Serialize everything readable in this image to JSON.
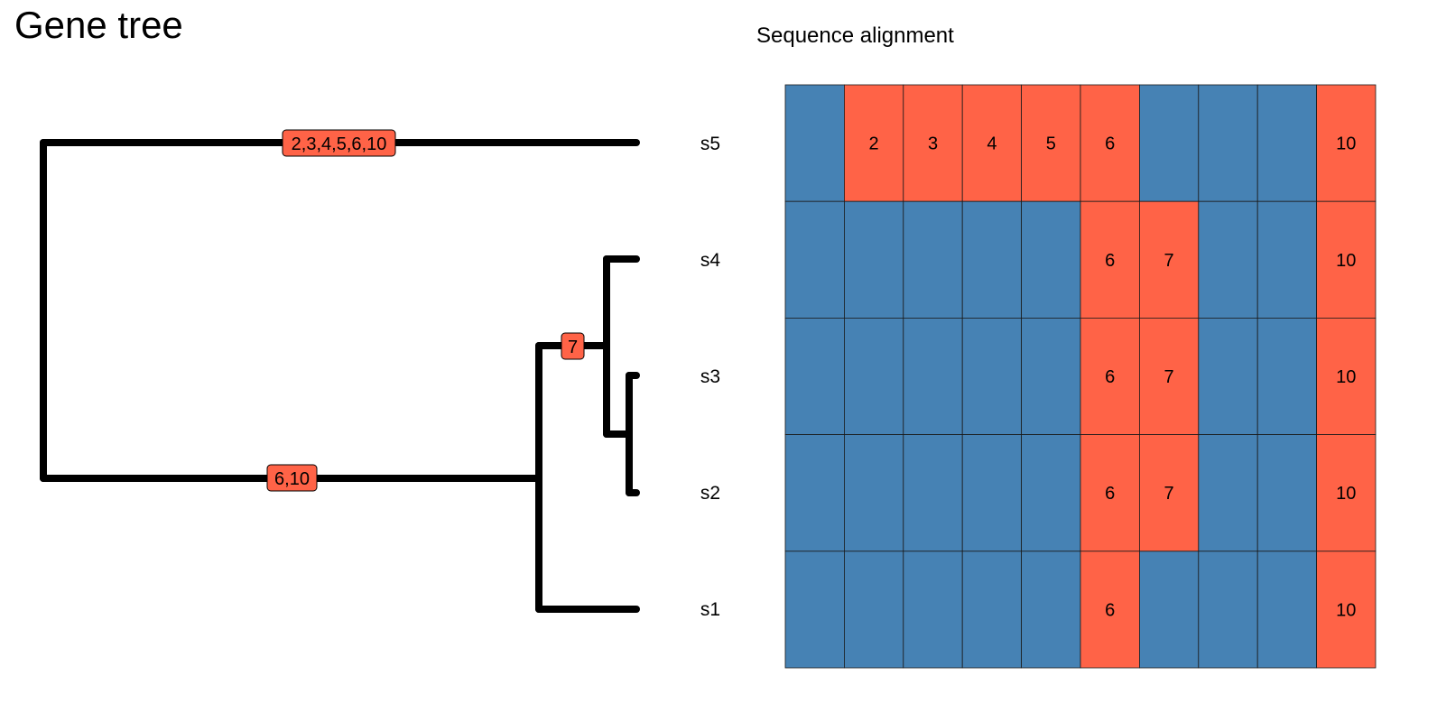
{
  "titles": {
    "tree": "Gene tree",
    "alignment": "Sequence alignment"
  },
  "colors": {
    "mutated": "#FF6347",
    "reference": "#4682B4",
    "branch": "#000000",
    "grid": "#1a1a1a"
  },
  "tree": {
    "tips": [
      "s5",
      "s4",
      "s3",
      "s2",
      "s1"
    ],
    "branch_labels": [
      "2,3,4,5,6,10",
      "7",
      "6,10"
    ]
  },
  "alignment": {
    "rows": [
      {
        "name": "s5",
        "cells": [
          "",
          "2",
          "3",
          "4",
          "5",
          "6",
          "",
          "",
          "",
          "10"
        ],
        "mutated": [
          false,
          true,
          true,
          true,
          true,
          true,
          false,
          false,
          false,
          true
        ]
      },
      {
        "name": "s4",
        "cells": [
          "",
          "",
          "",
          "",
          "",
          "6",
          "7",
          "",
          "",
          "10"
        ],
        "mutated": [
          false,
          false,
          false,
          false,
          false,
          true,
          true,
          false,
          false,
          true
        ]
      },
      {
        "name": "s3",
        "cells": [
          "",
          "",
          "",
          "",
          "",
          "6",
          "7",
          "",
          "",
          "10"
        ],
        "mutated": [
          false,
          false,
          false,
          false,
          false,
          true,
          true,
          false,
          false,
          true
        ]
      },
      {
        "name": "s2",
        "cells": [
          "",
          "",
          "",
          "",
          "",
          "6",
          "7",
          "",
          "",
          "10"
        ],
        "mutated": [
          false,
          false,
          false,
          false,
          false,
          true,
          true,
          false,
          false,
          true
        ]
      },
      {
        "name": "s1",
        "cells": [
          "",
          "",
          "",
          "",
          "",
          "6",
          "",
          "",
          "",
          "10"
        ],
        "mutated": [
          false,
          false,
          false,
          false,
          false,
          true,
          false,
          false,
          false,
          true
        ]
      }
    ]
  }
}
